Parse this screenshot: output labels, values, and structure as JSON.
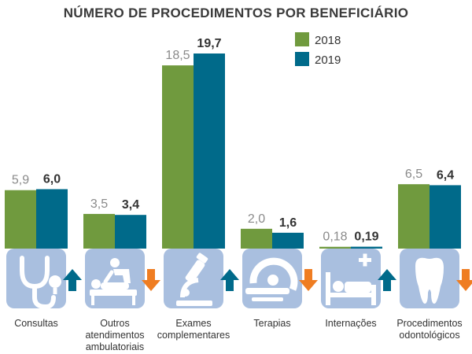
{
  "chart_data": {
    "type": "bar",
    "title": "NÚMERO DE PROCEDIMENTOS POR BENEFICIÁRIO",
    "series": [
      {
        "name": "2018",
        "color": "#709a3e",
        "values": [
          5.9,
          3.5,
          18.5,
          2.0,
          0.18,
          6.5
        ],
        "labels": [
          "5,9",
          "3,5",
          "18,5",
          "2,0",
          "0,18",
          "6,5"
        ]
      },
      {
        "name": "2019",
        "color": "#006a8a",
        "values": [
          6.0,
          3.4,
          19.7,
          1.6,
          0.19,
          6.4
        ],
        "labels": [
          "6,0",
          "3,4",
          "19,7",
          "1,6",
          "0,19",
          "6,4"
        ]
      }
    ],
    "categories": [
      {
        "label_lines": [
          "Consultas"
        ],
        "icon": "stethoscope-icon",
        "trend": "up"
      },
      {
        "label_lines": [
          "Outros",
          "atendimentos",
          "ambulatoriais"
        ],
        "icon": "physiotherapy-icon",
        "trend": "down"
      },
      {
        "label_lines": [
          "Exames",
          "complementares"
        ],
        "icon": "microscope-icon",
        "trend": "up"
      },
      {
        "label_lines": [
          "Terapias"
        ],
        "icon": "scanner-icon",
        "trend": "down"
      },
      {
        "label_lines": [
          "Internações"
        ],
        "icon": "hospital-bed-icon",
        "trend": "up"
      },
      {
        "label_lines": [
          "Procedimentos",
          "odontológicos"
        ],
        "icon": "tooth-icon",
        "trend": "down"
      }
    ],
    "legend_position": "top-right",
    "trend_colors": {
      "up": "#006a8a",
      "down": "#ef7d22"
    },
    "icon_tile_color": "#a9bfdf"
  }
}
